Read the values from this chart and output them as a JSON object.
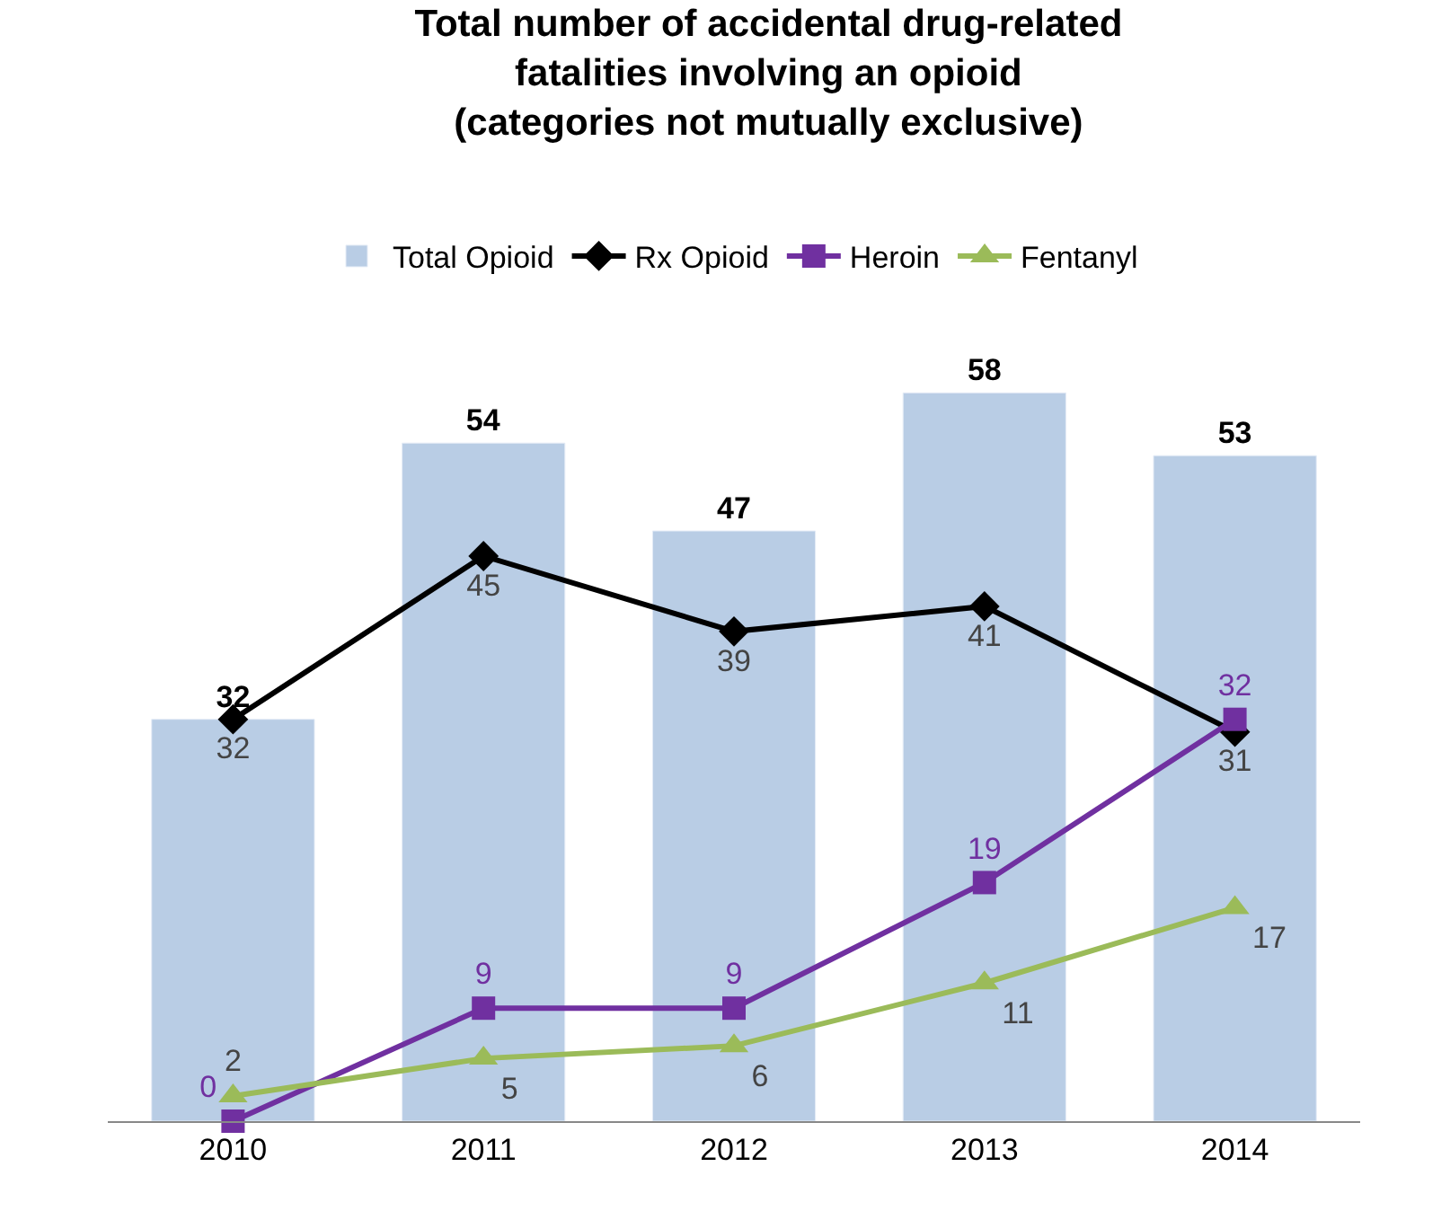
{
  "chart_data": {
    "type": "bar",
    "title": "Total number of accidental drug-related\nfatalities involving an opioid\n(categories not mutually exclusive)",
    "categories": [
      "2010",
      "2011",
      "2012",
      "2013",
      "2014"
    ],
    "series": [
      {
        "name": "Total Opioid",
        "color": "#b9cde5",
        "values": [
          32,
          54,
          47,
          58,
          53
        ]
      },
      {
        "name": "Rx Opioid",
        "type": "line",
        "color": "#000000",
        "marker": "diamond",
        "values": [
          32,
          45,
          39,
          41,
          31
        ]
      },
      {
        "name": "Heroin",
        "type": "line",
        "color": "#7030a0",
        "marker": "square",
        "values": [
          0,
          9,
          9,
          19,
          32
        ]
      },
      {
        "name": "Fentanyl",
        "type": "line",
        "color": "#9bbb59",
        "marker": "triangle",
        "values": [
          2,
          5,
          6,
          11,
          17
        ]
      }
    ],
    "data_labels": true,
    "legend": "top"
  }
}
